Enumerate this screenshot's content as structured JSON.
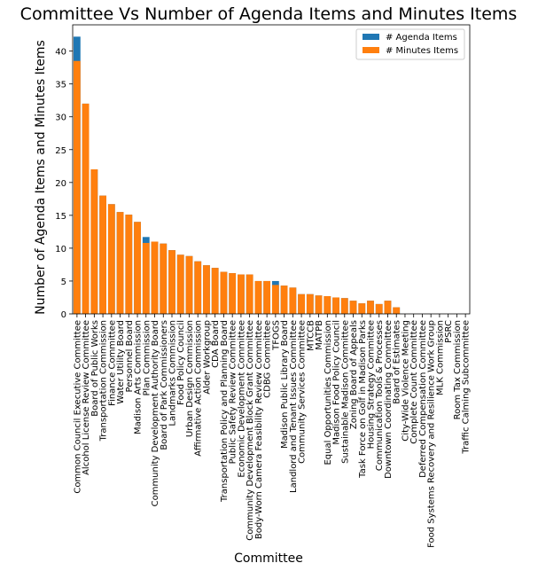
{
  "chart_data": {
    "type": "bar",
    "title": "Committee Vs Number of Agenda Items and Minutes Items",
    "xlabel": "Committee",
    "ylabel": "Number of Agenda Items and Minutes Items",
    "ylim": [
      0,
      44
    ],
    "yticks": [
      0,
      5,
      10,
      15,
      20,
      25,
      30,
      35,
      40
    ],
    "grid": false,
    "legend_position": "top-right",
    "categories": [
      "Common Council Executive Committee",
      "Alcohol License Review Committee",
      "Board of Public Works",
      "Transportation Commission",
      "Finance Committee",
      "Water Utility Board",
      "Personnel Board",
      "Madison Arts Commission",
      "Plan Commission",
      "Community Development Authority Board",
      "Board of Park Commissioners",
      "Landmarks Commission",
      "Food Policy Council",
      "Urban Design Commission",
      "Affirmative Action Commission",
      "Alder Workgroup",
      "CDA Board",
      "Transportation Policy and Planning Board",
      "Public Safety Review Committee",
      "Economic Development Committee",
      "Community Development Block Grant Committee",
      "Body-Worn Camera Feasibility Review Committee",
      "CDBG Committee",
      "TFOGS",
      "Madison Public Library Board",
      "Landlord and Tenant Issues Committee",
      "Community Services Committee",
      "MTCCB",
      "MATPB",
      "Equal Opportunities Commission",
      "Madison Food Policy Council",
      "Sustainable Madison Committee",
      "Zoning Board of Appeals",
      "Task Force on Golf in Madison Parks",
      "Housing Strategy Committee",
      "Communication Tools & Processes",
      "Downtown Coordinating Committee",
      "Board of Estimates",
      "City-Wide Violence Meeting",
      "Complete Count Committee",
      "Deferred Compensation Committee",
      "Food Systems Recovery and Resilience Work Group",
      "MLK Commission",
      "PSRC",
      "Room Tax Commission",
      "Traffic Calming Subcommittee"
    ],
    "series": [
      {
        "name": "# Agenda Items",
        "color": "#1f77b4",
        "values": [
          42.2,
          32,
          22,
          18,
          16.7,
          15.5,
          15.1,
          14,
          11.7,
          11,
          10.7,
          9.7,
          9,
          8.8,
          8,
          7.4,
          7,
          6.4,
          6.2,
          6,
          6,
          5,
          5,
          5,
          4.3,
          4,
          3,
          3,
          2.8,
          2.7,
          2.5,
          2.4,
          2,
          1.6,
          2,
          1.5,
          2,
          1,
          0,
          0,
          0,
          0,
          0,
          0,
          0,
          0
        ]
      },
      {
        "name": "# Minutes Items",
        "color": "#ff7f0e",
        "values": [
          38.5,
          32,
          22,
          18,
          16.7,
          15.5,
          15.1,
          14,
          10.8,
          11,
          10.7,
          9.7,
          9,
          8.8,
          8,
          7.4,
          7,
          6.4,
          6.2,
          6,
          6,
          5,
          5,
          4.4,
          4.3,
          4,
          3,
          3,
          2.8,
          2.7,
          2.5,
          2.4,
          2,
          1.6,
          2,
          1.5,
          2,
          1,
          0,
          0,
          0,
          0,
          0,
          0,
          0,
          0
        ]
      }
    ]
  }
}
